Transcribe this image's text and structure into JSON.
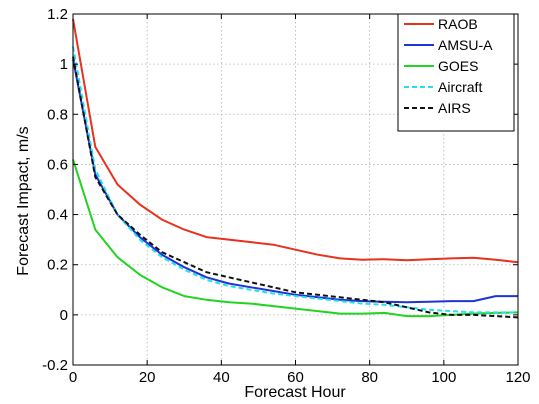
{
  "chart_data": {
    "type": "line",
    "title": "",
    "xlabel": "Forecast Hour",
    "ylabel": "Forecast Impact, m/s",
    "xlim": [
      0,
      120
    ],
    "ylim": [
      -0.2,
      1.2
    ],
    "xticks": [
      0,
      20,
      40,
      60,
      80,
      100,
      120
    ],
    "yticks": [
      -0.2,
      0,
      0.2,
      0.4,
      0.6,
      0.8,
      1,
      1.2
    ],
    "xtick_labels": [
      "0",
      "20",
      "40",
      "60",
      "80",
      "100",
      "120"
    ],
    "ytick_labels": [
      "-0.2",
      "0",
      "0.2",
      "0.4",
      "0.6",
      "0.8",
      "1",
      "1.2"
    ],
    "grid": true,
    "legend_position": "top-right",
    "series": [
      {
        "name": "RAOB",
        "color": "#e8311f",
        "dash": "solid",
        "x": [
          0,
          6,
          12,
          18,
          24,
          30,
          36,
          42,
          48,
          54,
          60,
          66,
          72,
          78,
          84,
          90,
          96,
          102,
          108,
          114,
          120
        ],
        "y": [
          1.18,
          0.67,
          0.52,
          0.44,
          0.38,
          0.34,
          0.31,
          0.3,
          0.29,
          0.28,
          0.26,
          0.24,
          0.225,
          0.22,
          0.222,
          0.218,
          0.222,
          0.225,
          0.228,
          0.22,
          0.21
        ]
      },
      {
        "name": "AMSU-A",
        "color": "#1f34d8",
        "dash": "solid",
        "x": [
          0,
          6,
          12,
          18,
          24,
          30,
          36,
          42,
          48,
          54,
          60,
          66,
          72,
          78,
          84,
          90,
          96,
          102,
          108,
          114,
          120
        ],
        "y": [
          1.02,
          0.56,
          0.4,
          0.31,
          0.24,
          0.19,
          0.15,
          0.125,
          0.11,
          0.095,
          0.08,
          0.07,
          0.06,
          0.055,
          0.052,
          0.05,
          0.052,
          0.055,
          0.055,
          0.075,
          0.075
        ]
      },
      {
        "name": "GOES",
        "color": "#22d422",
        "dash": "solid",
        "x": [
          0,
          6,
          12,
          18,
          24,
          30,
          36,
          42,
          48,
          54,
          60,
          66,
          72,
          78,
          84,
          90,
          96,
          102,
          108,
          114,
          120
        ],
        "y": [
          0.62,
          0.34,
          0.23,
          0.16,
          0.11,
          0.075,
          0.06,
          0.05,
          0.045,
          0.035,
          0.025,
          0.015,
          0.005,
          0.005,
          0.008,
          -0.005,
          -0.005,
          0.0,
          0.005,
          0.008,
          0.01
        ]
      },
      {
        "name": "Aircraft",
        "color": "#22e0ee",
        "dash": "dashed",
        "x": [
          0,
          6,
          12,
          18,
          24,
          30,
          36,
          42,
          48,
          54,
          60,
          66,
          72,
          78,
          84,
          90,
          96,
          102,
          108,
          114,
          120
        ],
        "y": [
          1.07,
          0.58,
          0.4,
          0.3,
          0.23,
          0.18,
          0.14,
          0.115,
          0.1,
          0.085,
          0.075,
          0.065,
          0.055,
          0.045,
          0.04,
          0.03,
          0.02,
          0.015,
          0.01,
          0.01,
          0.01
        ]
      },
      {
        "name": "AIRS",
        "color": "#111111",
        "dash": "dashed",
        "x": [
          0,
          6,
          12,
          18,
          24,
          30,
          36,
          42,
          48,
          54,
          60,
          66,
          72,
          78,
          84,
          90,
          96,
          102,
          108,
          114,
          120
        ],
        "y": [
          1.03,
          0.55,
          0.4,
          0.32,
          0.25,
          0.21,
          0.17,
          0.15,
          0.13,
          0.11,
          0.09,
          0.08,
          0.07,
          0.06,
          0.05,
          0.03,
          0.01,
          0.0,
          0.0,
          -0.005,
          -0.01
        ]
      }
    ]
  }
}
